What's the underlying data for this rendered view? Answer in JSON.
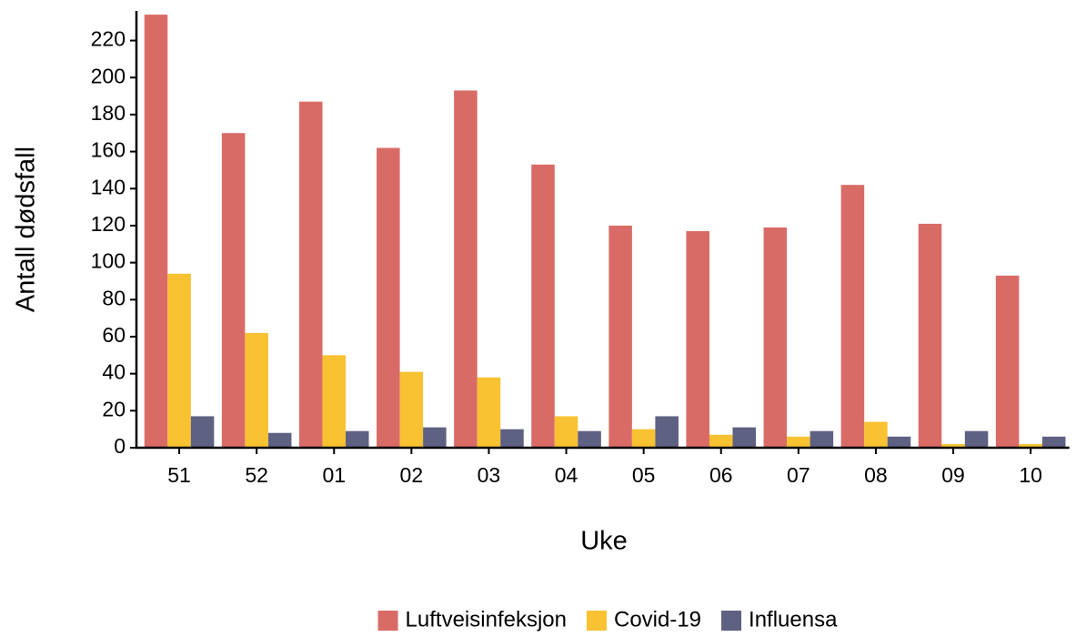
{
  "chart_data": {
    "type": "bar",
    "x_label": "Uke",
    "y_label": "Antall dødsfall",
    "categories": [
      "51",
      "52",
      "01",
      "02",
      "03",
      "04",
      "05",
      "06",
      "07",
      "08",
      "09",
      "10"
    ],
    "series": [
      {
        "name": "Luftveisinfeksjon",
        "color": "#d96b67",
        "values": [
          234,
          170,
          187,
          162,
          193,
          153,
          120,
          117,
          119,
          142,
          121,
          93
        ]
      },
      {
        "name": "Covid-19",
        "color": "#f8c232",
        "values": [
          94,
          62,
          50,
          41,
          38,
          17,
          10,
          7,
          6,
          14,
          2,
          2
        ]
      },
      {
        "name": "Influensa",
        "color": "#5f6182",
        "values": [
          17,
          8,
          9,
          11,
          10,
          9,
          17,
          11,
          9,
          6,
          9,
          6
        ]
      }
    ],
    "ylim": [
      0,
      236
    ],
    "yticks": [
      0,
      20,
      40,
      60,
      80,
      100,
      120,
      140,
      160,
      180,
      200,
      220
    ],
    "legend": "bottom"
  }
}
